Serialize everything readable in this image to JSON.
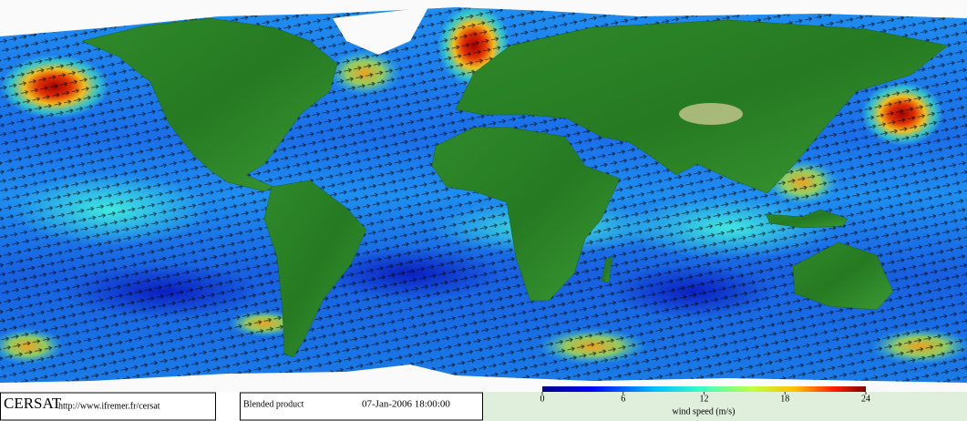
{
  "footer": {
    "logo": "CERSAT",
    "url": "http://www.ifremer.fr/cersat",
    "product": "Blended product",
    "timestamp": "07-Jan-2006 18:00:00"
  },
  "colorbar": {
    "label": "wind speed (m/s)",
    "range": [
      0,
      24
    ],
    "ticks": [
      0,
      6,
      12,
      18,
      24
    ]
  }
}
